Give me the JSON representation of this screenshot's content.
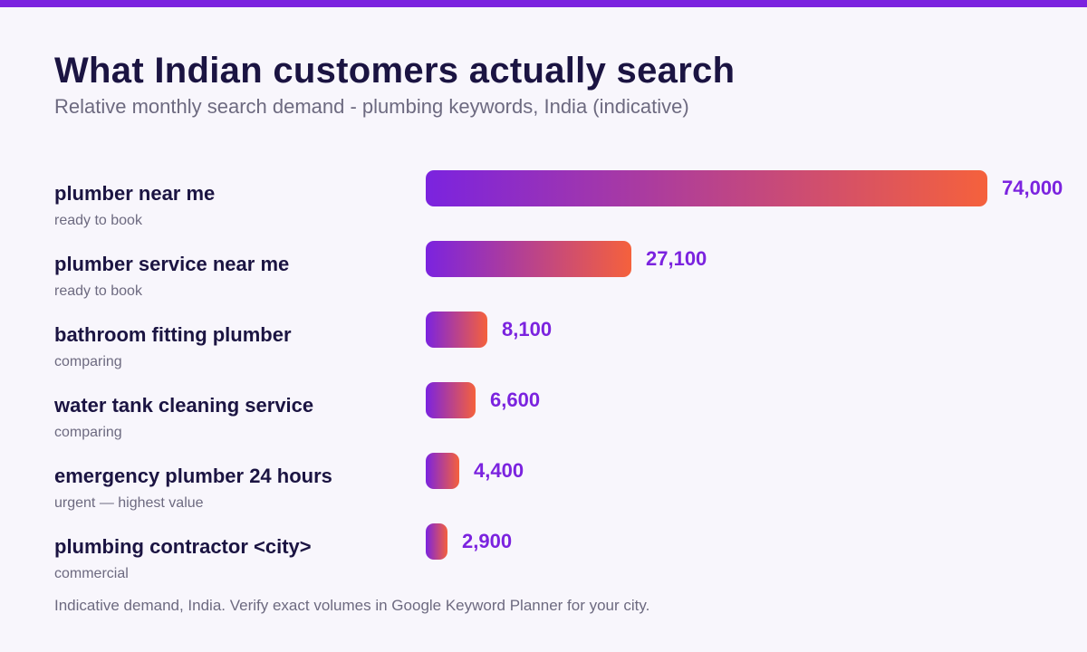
{
  "chart_data": {
    "type": "bar",
    "orientation": "horizontal",
    "title": "What Indian customers actually search",
    "subtitle": "Relative monthly search demand - plumbing keywords, India (indicative)",
    "categories": [
      "plumber near me",
      "plumber service near me",
      "bathroom fitting plumber",
      "water tank cleaning service",
      "emergency plumber 24 hours",
      "plumbing contractor <city>"
    ],
    "intents": [
      "ready to book",
      "ready to book",
      "comparing",
      "comparing",
      "urgent — highest value",
      "commercial"
    ],
    "values": [
      74000,
      27100,
      8100,
      6600,
      4400,
      2900
    ],
    "value_labels": [
      "74,000",
      "27,100",
      "8,100",
      "6,600",
      "4,400",
      "2,900"
    ],
    "xlim": [
      0,
      74000
    ],
    "grid": false,
    "footnote": "Indicative demand, India. Verify exact volumes in Google Keyword Planner for your city.",
    "colors": {
      "bar_gradient_start": "#7b23df",
      "bar_gradient_end": "#f5613c",
      "value_label": "#7b23df",
      "top_accent": "#7b23df"
    }
  }
}
